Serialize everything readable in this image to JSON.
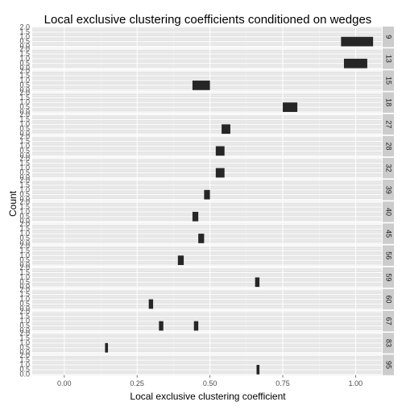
{
  "chart_data": {
    "type": "bar",
    "title": "Local exclusive clustering coefficients conditioned on wedges",
    "xlabel": "Local exclusive clustering coefficient",
    "ylabel": "Count",
    "xlim": [
      -0.11,
      1.09
    ],
    "ylim": [
      0,
      2
    ],
    "x_ticks": [
      0.0,
      0.25,
      0.5,
      0.75,
      1.0
    ],
    "x_tick_labels": [
      "0.00",
      "0.25",
      "0.50",
      "0.75",
      "1.00"
    ],
    "y_ticks": [
      0.0,
      0.5,
      1.0,
      1.5,
      2.0
    ],
    "y_tick_labels": [
      "0.0",
      "0.5",
      "1.0",
      "1.5",
      "2.0"
    ],
    "grid": true,
    "panels": [
      {
        "label": "9",
        "bars": [
          {
            "x_start": 0.95,
            "x_end": 1.06,
            "count": 1
          }
        ]
      },
      {
        "label": "13",
        "bars": [
          {
            "x_start": 0.96,
            "x_end": 1.04,
            "count": 1
          }
        ]
      },
      {
        "label": "15",
        "bars": [
          {
            "x_start": 0.44,
            "x_end": 0.5,
            "count": 1
          }
        ]
      },
      {
        "label": "18",
        "bars": [
          {
            "x_start": 0.75,
            "x_end": 0.8,
            "count": 1
          }
        ]
      },
      {
        "label": "27",
        "bars": [
          {
            "x_start": 0.54,
            "x_end": 0.57,
            "count": 1
          }
        ]
      },
      {
        "label": "28",
        "bars": [
          {
            "x_start": 0.52,
            "x_end": 0.55,
            "count": 1
          }
        ]
      },
      {
        "label": "32",
        "bars": [
          {
            "x_start": 0.52,
            "x_end": 0.55,
            "count": 1
          }
        ]
      },
      {
        "label": "39",
        "bars": [
          {
            "x_start": 0.48,
            "x_end": 0.5,
            "count": 1
          }
        ]
      },
      {
        "label": "40",
        "bars": [
          {
            "x_start": 0.44,
            "x_end": 0.46,
            "count": 1
          }
        ]
      },
      {
        "label": "45",
        "bars": [
          {
            "x_start": 0.46,
            "x_end": 0.48,
            "count": 1
          }
        ]
      },
      {
        "label": "56",
        "bars": [
          {
            "x_start": 0.39,
            "x_end": 0.41,
            "count": 1
          }
        ]
      },
      {
        "label": "59",
        "bars": [
          {
            "x_start": 0.655,
            "x_end": 0.67,
            "count": 1
          }
        ]
      },
      {
        "label": "60",
        "bars": [
          {
            "x_start": 0.29,
            "x_end": 0.305,
            "count": 1
          }
        ]
      },
      {
        "label": "67",
        "bars": [
          {
            "x_start": 0.325,
            "x_end": 0.34,
            "count": 1
          },
          {
            "x_start": 0.445,
            "x_end": 0.46,
            "count": 1
          }
        ]
      },
      {
        "label": "83",
        "bars": [
          {
            "x_start": 0.14,
            "x_end": 0.15,
            "count": 1
          }
        ]
      },
      {
        "label": "95",
        "bars": [
          {
            "x_start": 0.66,
            "x_end": 0.67,
            "count": 1
          }
        ]
      }
    ],
    "colors": {
      "panel_background": "#e5e5e5",
      "grid_major": "#ffffff",
      "grid_minor": "#f2f2f2",
      "bar": "#262626",
      "strip_background": "#cccccc"
    }
  }
}
